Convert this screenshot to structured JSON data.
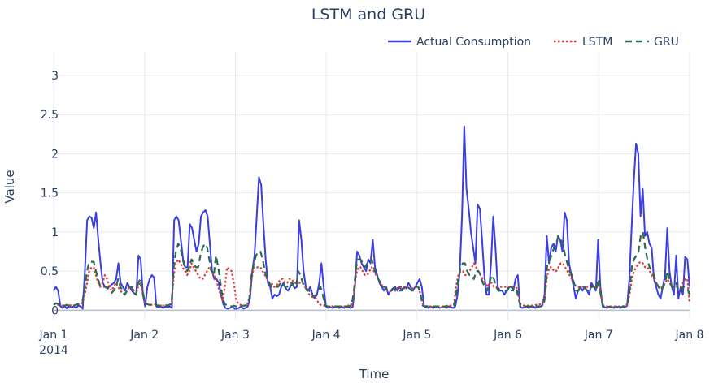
{
  "chart_data": {
    "type": "line",
    "title": "LSTM and GRU",
    "xlabel": "Time",
    "ylabel": "Value",
    "ylim": [
      -0.12,
      3.3
    ],
    "xlim": [
      "2014-01-01T00:00",
      "2014-01-08T00:00"
    ],
    "yticks": [
      0,
      0.5,
      1,
      1.5,
      2,
      2.5,
      3
    ],
    "ytick_labels": [
      "0",
      "0.5",
      "1",
      "1.5",
      "2",
      "2.5",
      "3"
    ],
    "xticks": [
      {
        "label": "Jan 1",
        "sublabel": "2014"
      },
      {
        "label": "Jan 2",
        "sublabel": ""
      },
      {
        "label": "Jan 3",
        "sublabel": ""
      },
      {
        "label": "Jan 4",
        "sublabel": ""
      },
      {
        "label": "Jan 5",
        "sublabel": ""
      },
      {
        "label": "Jan 6",
        "sublabel": ""
      },
      {
        "label": "Jan 7",
        "sublabel": ""
      },
      {
        "label": "Jan 8",
        "sublabel": ""
      }
    ],
    "grid": true,
    "legend": "top-right",
    "series": [
      {
        "name": "Actual Consumption",
        "color": "#3b3ee0",
        "dash": "solid",
        "values": [
          0.25,
          0.3,
          0.25,
          0.05,
          0.03,
          0.05,
          0.02,
          0.05,
          0.04,
          0.05,
          0.03,
          0.06,
          0.05,
          0.02,
          0.5,
          1.15,
          1.2,
          1.18,
          1.05,
          1.25,
          0.9,
          0.6,
          0.35,
          0.3,
          0.28,
          0.3,
          0.33,
          0.35,
          0.4,
          0.6,
          0.35,
          0.3,
          0.25,
          0.35,
          0.3,
          0.25,
          0.22,
          0.2,
          0.7,
          0.65,
          0.2,
          0.05,
          0.3,
          0.4,
          0.45,
          0.42,
          0.05,
          0.04,
          0.05,
          0.03,
          0.05,
          0.04,
          0.05,
          0.03,
          1.15,
          1.2,
          1.15,
          0.9,
          0.65,
          0.55,
          0.55,
          1.1,
          1.05,
          0.9,
          0.75,
          0.85,
          1.2,
          1.25,
          1.28,
          1.2,
          0.85,
          0.5,
          0.4,
          0.4,
          0.35,
          0.2,
          0.08,
          0.03,
          0.02,
          0.03,
          0.05,
          0.02,
          0.02,
          0.03,
          0.05,
          0.02,
          0.03,
          0.05,
          0.15,
          0.5,
          0.7,
          1.2,
          1.7,
          1.6,
          1.1,
          0.65,
          0.35,
          0.3,
          0.15,
          0.2,
          0.18,
          0.2,
          0.3,
          0.35,
          0.28,
          0.25,
          0.3,
          0.35,
          0.28,
          0.3,
          1.15,
          0.9,
          0.5,
          0.3,
          0.25,
          0.3,
          0.2,
          0.15,
          0.2,
          0.35,
          0.6,
          0.3,
          0.05,
          0.03,
          0.04,
          0.03,
          0.05,
          0.04,
          0.03,
          0.05,
          0.03,
          0.04,
          0.05,
          0.03,
          0.04,
          0.3,
          0.75,
          0.7,
          0.6,
          0.55,
          0.5,
          0.65,
          0.6,
          0.9,
          0.55,
          0.45,
          0.35,
          0.3,
          0.25,
          0.3,
          0.2,
          0.25,
          0.28,
          0.3,
          0.25,
          0.3,
          0.25,
          0.3,
          0.28,
          0.35,
          0.3,
          0.25,
          0.3,
          0.35,
          0.4,
          0.3,
          0.05,
          0.04,
          0.03,
          0.05,
          0.03,
          0.04,
          0.05,
          0.03,
          0.04,
          0.05,
          0.03,
          0.05,
          0.04,
          0.03,
          0.05,
          0.2,
          0.5,
          1.2,
          2.35,
          1.55,
          1.3,
          1.0,
          0.8,
          0.6,
          1.35,
          1.3,
          0.9,
          0.45,
          0.2,
          0.2,
          0.6,
          1.2,
          0.8,
          0.3,
          0.25,
          0.25,
          0.2,
          0.25,
          0.3,
          0.3,
          0.25,
          0.4,
          0.45,
          0.05,
          0.03,
          0.04,
          0.05,
          0.03,
          0.04,
          0.05,
          0.03,
          0.04,
          0.05,
          0.06,
          0.2,
          0.95,
          0.6,
          0.8,
          0.85,
          0.75,
          0.95,
          0.9,
          0.75,
          1.25,
          1.15,
          0.6,
          0.45,
          0.3,
          0.15,
          0.25,
          0.3,
          0.25,
          0.3,
          0.25,
          0.2,
          0.35,
          0.3,
          0.25,
          0.9,
          0.3,
          0.05,
          0.04,
          0.03,
          0.05,
          0.04,
          0.03,
          0.05,
          0.04,
          0.03,
          0.05,
          0.04,
          0.06,
          0.4,
          1.05,
          1.65,
          2.13,
          2.0,
          1.2,
          1.55,
          0.95,
          1.0,
          0.85,
          0.8,
          0.4,
          0.3,
          0.2,
          0.15,
          0.3,
          0.45,
          1.05,
          0.5,
          0.3,
          0.2,
          0.7,
          0.15,
          0.3,
          0.2,
          0.68,
          0.65,
          0.3
        ]
      },
      {
        "name": "LSTM",
        "color": "#e03b3b",
        "dash": "dot",
        "values": [
          0.07,
          0.08,
          0.07,
          0.06,
          0.06,
          0.06,
          0.07,
          0.06,
          0.07,
          0.06,
          0.07,
          0.08,
          0.08,
          0.1,
          0.2,
          0.35,
          0.5,
          0.55,
          0.55,
          0.45,
          0.35,
          0.3,
          0.35,
          0.45,
          0.4,
          0.3,
          0.25,
          0.3,
          0.35,
          0.3,
          0.25,
          0.22,
          0.2,
          0.25,
          0.3,
          0.3,
          0.25,
          0.2,
          0.3,
          0.35,
          0.22,
          0.1,
          0.08,
          0.07,
          0.07,
          0.08,
          0.07,
          0.06,
          0.06,
          0.06,
          0.07,
          0.06,
          0.07,
          0.08,
          0.45,
          0.6,
          0.65,
          0.6,
          0.55,
          0.5,
          0.45,
          0.5,
          0.6,
          0.55,
          0.5,
          0.45,
          0.4,
          0.4,
          0.45,
          0.5,
          0.55,
          0.5,
          0.45,
          0.4,
          0.3,
          0.2,
          0.12,
          0.3,
          0.55,
          0.52,
          0.5,
          0.35,
          0.15,
          0.08,
          0.07,
          0.06,
          0.06,
          0.07,
          0.15,
          0.4,
          0.55,
          0.55,
          0.55,
          0.55,
          0.5,
          0.45,
          0.4,
          0.35,
          0.35,
          0.3,
          0.3,
          0.35,
          0.4,
          0.4,
          0.35,
          0.35,
          0.4,
          0.4,
          0.35,
          0.35,
          0.35,
          0.35,
          0.35,
          0.3,
          0.25,
          0.2,
          0.18,
          0.15,
          0.15,
          0.1,
          0.07,
          0.06,
          0.06,
          0.05,
          0.05,
          0.05,
          0.05,
          0.05,
          0.05,
          0.05,
          0.05,
          0.05,
          0.06,
          0.06,
          0.06,
          0.2,
          0.45,
          0.55,
          0.55,
          0.5,
          0.45,
          0.45,
          0.5,
          0.55,
          0.5,
          0.45,
          0.4,
          0.35,
          0.3,
          0.3,
          0.25,
          0.25,
          0.25,
          0.25,
          0.25,
          0.3,
          0.3,
          0.3,
          0.3,
          0.3,
          0.28,
          0.28,
          0.28,
          0.3,
          0.3,
          0.2,
          0.08,
          0.06,
          0.05,
          0.05,
          0.05,
          0.05,
          0.05,
          0.05,
          0.05,
          0.05,
          0.05,
          0.06,
          0.06,
          0.06,
          0.08,
          0.3,
          0.45,
          0.5,
          0.5,
          0.45,
          0.45,
          0.5,
          0.55,
          0.6,
          0.55,
          0.5,
          0.45,
          0.4,
          0.35,
          0.3,
          0.35,
          0.35,
          0.3,
          0.3,
          0.3,
          0.3,
          0.3,
          0.3,
          0.3,
          0.3,
          0.3,
          0.3,
          0.3,
          0.2,
          0.08,
          0.06,
          0.06,
          0.06,
          0.06,
          0.06,
          0.06,
          0.07,
          0.07,
          0.08,
          0.1,
          0.2,
          0.45,
          0.55,
          0.55,
          0.5,
          0.5,
          0.55,
          0.6,
          0.6,
          0.55,
          0.5,
          0.45,
          0.4,
          0.35,
          0.3,
          0.3,
          0.3,
          0.3,
          0.3,
          0.3,
          0.3,
          0.3,
          0.3,
          0.3,
          0.35,
          0.2,
          0.07,
          0.05,
          0.05,
          0.05,
          0.05,
          0.05,
          0.05,
          0.05,
          0.05,
          0.05,
          0.06,
          0.08,
          0.2,
          0.4,
          0.5,
          0.55,
          0.6,
          0.62,
          0.6,
          0.55,
          0.55,
          0.5,
          0.45,
          0.4,
          0.35,
          0.3,
          0.3,
          0.3,
          0.35,
          0.4,
          0.35,
          0.3,
          0.3,
          0.3,
          0.3,
          0.3,
          0.35,
          0.4,
          0.4,
          0.1
        ]
      },
      {
        "name": "GRU",
        "color": "#2e6b4d",
        "dash": "dash",
        "values": [
          0.07,
          0.09,
          0.08,
          0.06,
          0.06,
          0.06,
          0.07,
          0.06,
          0.07,
          0.06,
          0.07,
          0.08,
          0.08,
          0.12,
          0.3,
          0.5,
          0.62,
          0.62,
          0.62,
          0.5,
          0.4,
          0.3,
          0.3,
          0.3,
          0.3,
          0.25,
          0.22,
          0.25,
          0.3,
          0.4,
          0.3,
          0.25,
          0.2,
          0.25,
          0.3,
          0.3,
          0.25,
          0.2,
          0.35,
          0.4,
          0.25,
          0.1,
          0.08,
          0.07,
          0.07,
          0.08,
          0.07,
          0.06,
          0.06,
          0.06,
          0.07,
          0.06,
          0.07,
          0.08,
          0.55,
          0.75,
          0.85,
          0.8,
          0.65,
          0.55,
          0.5,
          0.55,
          0.65,
          0.6,
          0.55,
          0.55,
          0.7,
          0.8,
          0.85,
          0.8,
          0.65,
          0.5,
          0.45,
          0.7,
          0.55,
          0.35,
          0.15,
          0.08,
          0.06,
          0.05,
          0.05,
          0.06,
          0.05,
          0.05,
          0.05,
          0.06,
          0.06,
          0.07,
          0.15,
          0.45,
          0.6,
          0.7,
          0.75,
          0.75,
          0.65,
          0.5,
          0.4,
          0.35,
          0.3,
          0.3,
          0.3,
          0.3,
          0.35,
          0.35,
          0.3,
          0.3,
          0.35,
          0.35,
          0.3,
          0.3,
          0.5,
          0.45,
          0.35,
          0.3,
          0.25,
          0.25,
          0.2,
          0.18,
          0.2,
          0.25,
          0.3,
          0.2,
          0.07,
          0.05,
          0.05,
          0.05,
          0.05,
          0.05,
          0.05,
          0.05,
          0.05,
          0.05,
          0.05,
          0.05,
          0.06,
          0.25,
          0.55,
          0.65,
          0.65,
          0.6,
          0.55,
          0.6,
          0.6,
          0.65,
          0.55,
          0.45,
          0.4,
          0.35,
          0.3,
          0.3,
          0.25,
          0.25,
          0.25,
          0.28,
          0.25,
          0.25,
          0.25,
          0.28,
          0.28,
          0.3,
          0.28,
          0.25,
          0.28,
          0.3,
          0.3,
          0.2,
          0.06,
          0.05,
          0.05,
          0.05,
          0.05,
          0.05,
          0.05,
          0.05,
          0.05,
          0.05,
          0.05,
          0.05,
          0.05,
          0.05,
          0.06,
          0.2,
          0.4,
          0.55,
          0.6,
          0.6,
          0.5,
          0.45,
          0.45,
          0.4,
          0.5,
          0.5,
          0.45,
          0.35,
          0.3,
          0.25,
          0.35,
          0.45,
          0.4,
          0.3,
          0.25,
          0.25,
          0.25,
          0.25,
          0.25,
          0.3,
          0.25,
          0.3,
          0.3,
          0.15,
          0.06,
          0.05,
          0.05,
          0.05,
          0.05,
          0.05,
          0.05,
          0.05,
          0.05,
          0.05,
          0.06,
          0.15,
          0.6,
          0.65,
          0.7,
          0.8,
          0.85,
          0.95,
          0.9,
          0.85,
          0.7,
          0.6,
          0.5,
          0.45,
          0.35,
          0.25,
          0.25,
          0.3,
          0.3,
          0.28,
          0.25,
          0.25,
          0.3,
          0.3,
          0.25,
          0.4,
          0.2,
          0.06,
          0.04,
          0.04,
          0.04,
          0.04,
          0.04,
          0.04,
          0.04,
          0.04,
          0.05,
          0.05,
          0.08,
          0.25,
          0.55,
          0.65,
          0.7,
          0.75,
          0.95,
          1.0,
          0.8,
          0.65,
          0.55,
          0.5,
          0.45,
          0.35,
          0.3,
          0.25,
          0.3,
          0.35,
          0.5,
          0.4,
          0.3,
          0.3,
          0.35,
          0.25,
          0.25,
          0.3,
          0.3,
          0.28,
          0.2
        ]
      }
    ]
  }
}
